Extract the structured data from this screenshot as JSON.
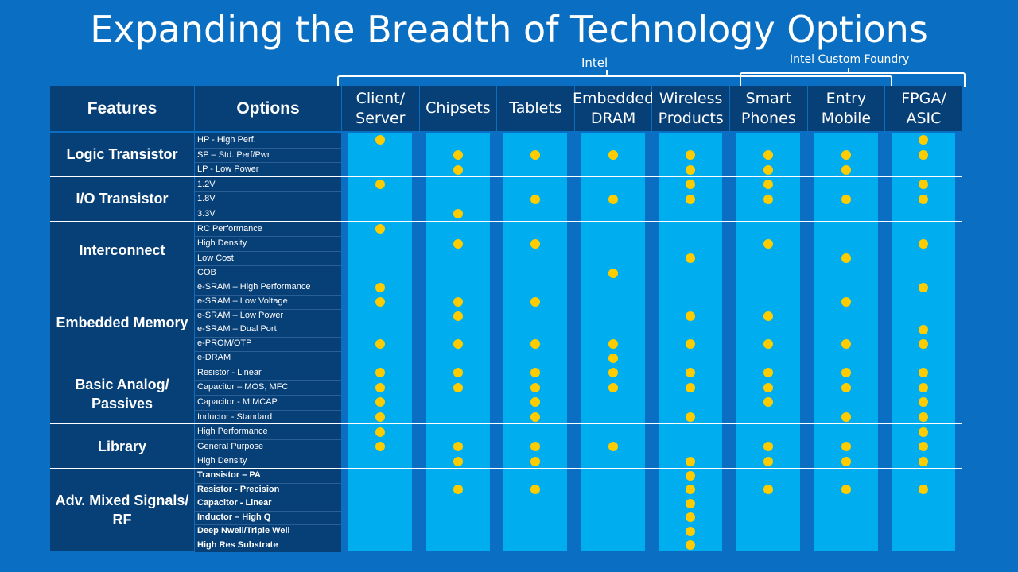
{
  "title": "Expanding the Breadth of Technology Options",
  "groups": {
    "intel": "Intel",
    "foundry": "Intel Custom Foundry"
  },
  "headers": {
    "features": "Features",
    "options": "Options"
  },
  "columns": [
    "Client/\nServer",
    "Chipsets",
    "Tablets",
    "Embedded\nDRAM",
    "Wireless\nProducts",
    "Smart\nPhones",
    "Entry\nMobile",
    "FPGA/\nASIC"
  ],
  "sections": [
    {
      "label": "Logic Transistor",
      "rows": [
        {
          "option": "HP - High Perf.",
          "dots": [
            1,
            0,
            0,
            0,
            0,
            0,
            0,
            1
          ]
        },
        {
          "option": "SP – Std. Perf/Pwr",
          "dots": [
            0,
            1,
            1,
            1,
            1,
            1,
            1,
            1
          ]
        },
        {
          "option": "LP - Low Power",
          "dots": [
            0,
            1,
            0,
            0,
            1,
            1,
            1,
            0
          ]
        }
      ]
    },
    {
      "label": "I/O   Transistor",
      "rows": [
        {
          "option": "1.2V",
          "dots": [
            1,
            0,
            0,
            0,
            1,
            1,
            0,
            1
          ]
        },
        {
          "option": "1.8V",
          "dots": [
            0,
            0,
            1,
            1,
            1,
            1,
            1,
            1
          ]
        },
        {
          "option": "3.3V",
          "dots": [
            0,
            1,
            0,
            0,
            0,
            0,
            0,
            0
          ]
        }
      ]
    },
    {
      "label": "Interconnect",
      "rows": [
        {
          "option": "RC Performance",
          "dots": [
            1,
            0,
            0,
            0,
            0,
            0,
            0,
            0
          ]
        },
        {
          "option": "High Density",
          "dots": [
            0,
            1,
            1,
            0,
            0,
            1,
            0,
            1
          ]
        },
        {
          "option": "Low Cost",
          "dots": [
            0,
            0,
            0,
            0,
            1,
            0,
            1,
            0
          ]
        },
        {
          "option": "COB",
          "dots": [
            0,
            0,
            0,
            1,
            0,
            0,
            0,
            0
          ]
        }
      ]
    },
    {
      "label": "Embedded Memory",
      "rows": [
        {
          "option": "e-SRAM – High Performance",
          "dots": [
            1,
            0,
            0,
            0,
            0,
            0,
            0,
            1
          ]
        },
        {
          "option": "e-SRAM – Low Voltage",
          "dots": [
            1,
            1,
            1,
            0,
            0,
            0,
            1,
            0
          ]
        },
        {
          "option": "e-SRAM – Low Power",
          "dots": [
            0,
            1,
            0,
            0,
            1,
            1,
            0,
            0
          ]
        },
        {
          "option": "e-SRAM – Dual Port",
          "dots": [
            0,
            0,
            0,
            0,
            0,
            0,
            0,
            1
          ]
        },
        {
          "option": "e-PROM/OTP",
          "dots": [
            1,
            1,
            1,
            1,
            1,
            1,
            1,
            1
          ]
        },
        {
          "option": "e-DRAM",
          "dots": [
            0,
            0,
            0,
            1,
            0,
            0,
            0,
            0
          ]
        }
      ]
    },
    {
      "label": "Basic Analog/\nPassives",
      "rows": [
        {
          "option": "Resistor - Linear",
          "dots": [
            1,
            1,
            1,
            1,
            1,
            1,
            1,
            1
          ]
        },
        {
          "option": "Capacitor – MOS, MFC",
          "dots": [
            1,
            1,
            1,
            1,
            1,
            1,
            1,
            1
          ]
        },
        {
          "option": "Capacitor - MIMCAP",
          "dots": [
            1,
            0,
            1,
            0,
            0,
            1,
            0,
            1
          ]
        },
        {
          "option": "Inductor - Standard",
          "dots": [
            1,
            0,
            1,
            0,
            1,
            0,
            1,
            1
          ]
        }
      ]
    },
    {
      "label": "Library",
      "rows": [
        {
          "option": "High Performance",
          "dots": [
            1,
            0,
            0,
            0,
            0,
            0,
            0,
            1
          ]
        },
        {
          "option": "General Purpose",
          "dots": [
            1,
            1,
            1,
            1,
            0,
            1,
            1,
            1
          ]
        },
        {
          "option": "High Density",
          "dots": [
            0,
            1,
            1,
            0,
            1,
            1,
            1,
            1
          ]
        }
      ]
    },
    {
      "label": "Adv. Mixed Signals/\nRF",
      "bold_options": true,
      "rows": [
        {
          "option": "Transistor – PA",
          "dots": [
            0,
            0,
            0,
            0,
            1,
            0,
            0,
            0
          ]
        },
        {
          "option": "Resistor - Precision",
          "dots": [
            0,
            1,
            1,
            0,
            1,
            1,
            1,
            1
          ]
        },
        {
          "option": "Capacitor - Linear",
          "dots": [
            0,
            0,
            0,
            0,
            1,
            0,
            0,
            0
          ]
        },
        {
          "option": "Inductor – High Q",
          "dots": [
            0,
            0,
            0,
            0,
            1,
            0,
            0,
            0
          ]
        },
        {
          "option": "Deep Nwell/Triple Well",
          "dots": [
            0,
            0,
            0,
            0,
            1,
            0,
            0,
            0
          ]
        },
        {
          "option": "High Res Substrate",
          "dots": [
            0,
            0,
            0,
            0,
            1,
            0,
            0,
            0
          ]
        }
      ]
    }
  ],
  "colors": {
    "background": "#0a6fc2",
    "header": "#073f77",
    "column": "#00aeef",
    "dot": "#ffcc00"
  }
}
